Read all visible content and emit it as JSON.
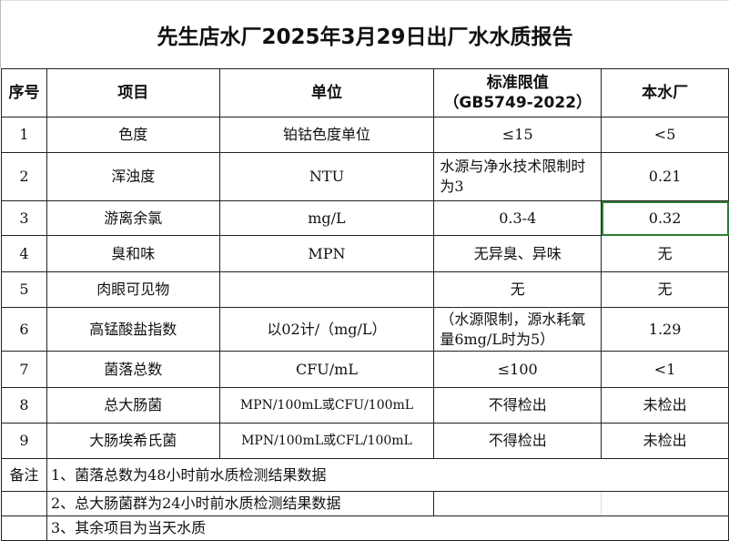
{
  "title": "先生店水厂2025年3月29日出厂水水质报告",
  "headers": {
    "no": "序号",
    "item": "项目",
    "unit": "单位",
    "limit_line1": "标准限值",
    "limit_line2": "（GB5749-2022）",
    "plant": "本水厂"
  },
  "rows": [
    {
      "no": "1",
      "item": "色度",
      "unit": "铂钴色度单位",
      "limit": "≤15",
      "value": "<5"
    },
    {
      "no": "2",
      "item": "浑浊度",
      "unit": "NTU",
      "limit": "水源与净水技术限制时为3",
      "value": "0.21"
    },
    {
      "no": "3",
      "item": "游离余氯",
      "unit": "mg/L",
      "limit": "0.3-4",
      "value": "0.32"
    },
    {
      "no": "4",
      "item": "臭和味",
      "unit": "MPN",
      "limit": "无异臭、异味",
      "value": "无"
    },
    {
      "no": "5",
      "item": "肉眼可见物",
      "unit": "",
      "limit": "无",
      "value": "无"
    },
    {
      "no": "6",
      "item": "高锰酸盐指数",
      "unit": "以02计/（mg/L）",
      "limit": "（水源限制，源水耗氧量6mg/L时为5）",
      "value": "1.29"
    },
    {
      "no": "7",
      "item": "菌落总数",
      "unit": "CFU/mL",
      "limit": "≤100",
      "value": "<1"
    },
    {
      "no": "8",
      "item": "总大肠菌",
      "unit": "MPN/100mL或CFU/100mL",
      "limit": "不得检出",
      "value": "未检出"
    },
    {
      "no": "9",
      "item": "大肠埃希氏菌",
      "unit": "MPN/100mL或CFL/100mL",
      "limit": "不得检出",
      "value": "未检出"
    }
  ],
  "notes_label": "备注",
  "notes": [
    "1、菌落总数为48小时前水质检测结果数据",
    "2、总大肠菌群为24小时前水质检测结果数据",
    "3、其余项目为当天水质"
  ],
  "colors": {
    "selection": "#2e7d32"
  }
}
